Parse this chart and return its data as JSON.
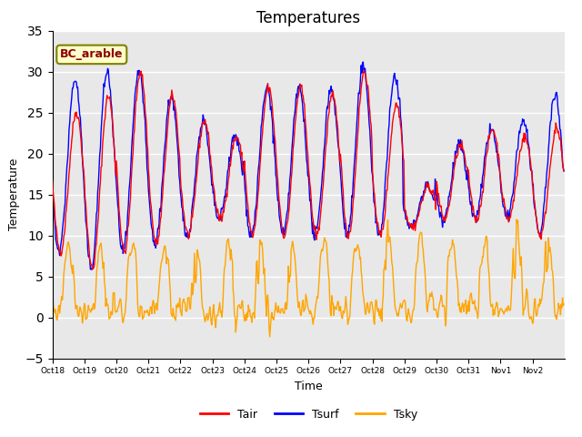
{
  "title": "Temperatures",
  "xlabel": "Time",
  "ylabel": "Temperature",
  "annotation": "BC_arable",
  "ylim": [
    -5,
    35
  ],
  "n_days": 16,
  "legend_labels": [
    "Tair",
    "Tsurf",
    "Tsky"
  ],
  "line_colors": [
    "red",
    "blue",
    "orange"
  ],
  "bg_color": "#e8e8e8",
  "fig_color": "#ffffff",
  "xtick_labels": [
    "Oct 18",
    "Oct 19",
    "Oct 20",
    "Oct 21",
    "Oct 22",
    "Oct 23",
    "Oct 24",
    "Oct 25",
    "Oct 26",
    "Oct 27",
    "Oct 28",
    "Oct 29",
    "Oct 30",
    "Oct 31",
    "Nov 1",
    "Nov 2"
  ],
  "title_fontsize": 12,
  "axis_label_fontsize": 9,
  "yticks": [
    -5,
    0,
    5,
    10,
    15,
    20,
    25,
    30,
    35
  ],
  "annotation_fontsize": 9,
  "legend_fontsize": 9
}
